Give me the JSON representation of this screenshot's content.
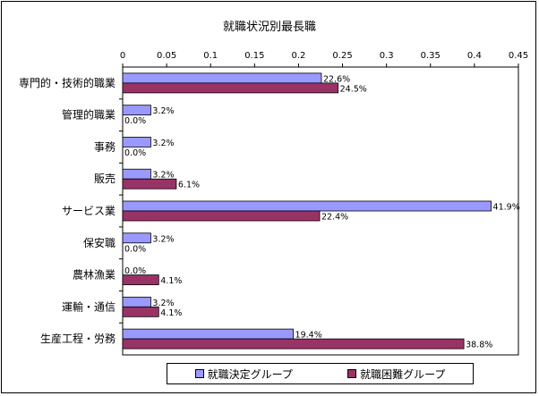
{
  "chart_data": {
    "type": "bar",
    "orientation": "horizontal",
    "title": "就職状況別最長職",
    "xlim": [
      0,
      0.45
    ],
    "x_ticks": [
      "0",
      "0.05",
      "0.1",
      "0.15",
      "0.2",
      "0.25",
      "0.3",
      "0.35",
      "0.4",
      "0.45"
    ],
    "categories": [
      "専門的・技術的職業",
      "管理的職業",
      "事務",
      "販売",
      "サービス業",
      "保安職",
      "農林漁業",
      "運輸・通信",
      "生産工程・労務"
    ],
    "series": [
      {
        "name": "就職決定グループ",
        "color": "#9999FF",
        "values": [
          0.226,
          0.032,
          0.032,
          0.032,
          0.419,
          0.032,
          0.0,
          0.032,
          0.194
        ],
        "labels": [
          "22.6%",
          "3.2%",
          "3.2%",
          "3.2%",
          "41.9%",
          "3.2%",
          "0.0%",
          "3.2%",
          "19.4%"
        ]
      },
      {
        "name": "就職困難グループ",
        "color": "#993366",
        "values": [
          0.245,
          0.0,
          0.0,
          0.061,
          0.224,
          0.0,
          0.041,
          0.041,
          0.388
        ],
        "labels": [
          "24.5%",
          "0.0%",
          "0.0%",
          "6.1%",
          "22.4%",
          "0.0%",
          "4.1%",
          "4.1%",
          "38.8%"
        ]
      }
    ],
    "legend_position": "bottom",
    "grid": false
  }
}
